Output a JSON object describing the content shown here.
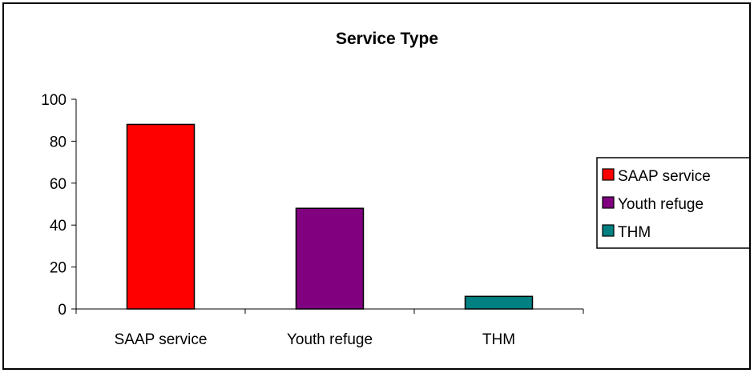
{
  "chart_data": {
    "type": "bar",
    "title": "Service Type",
    "xlabel": "",
    "ylabel": "",
    "categories": [
      "SAAP service",
      "Youth refuge",
      "THM"
    ],
    "series": [
      {
        "name": "SAAP service",
        "values": [
          88,
          null,
          null
        ],
        "color": "#ff0000"
      },
      {
        "name": "Youth refuge",
        "values": [
          null,
          48,
          null
        ],
        "color": "#800080"
      },
      {
        "name": "THM",
        "values": [
          null,
          null,
          6
        ],
        "color": "#008080"
      }
    ],
    "ylim": [
      0,
      100
    ],
    "yticks": [
      0,
      20,
      40,
      60,
      80,
      100
    ],
    "grid": false,
    "legend_position": "right"
  }
}
